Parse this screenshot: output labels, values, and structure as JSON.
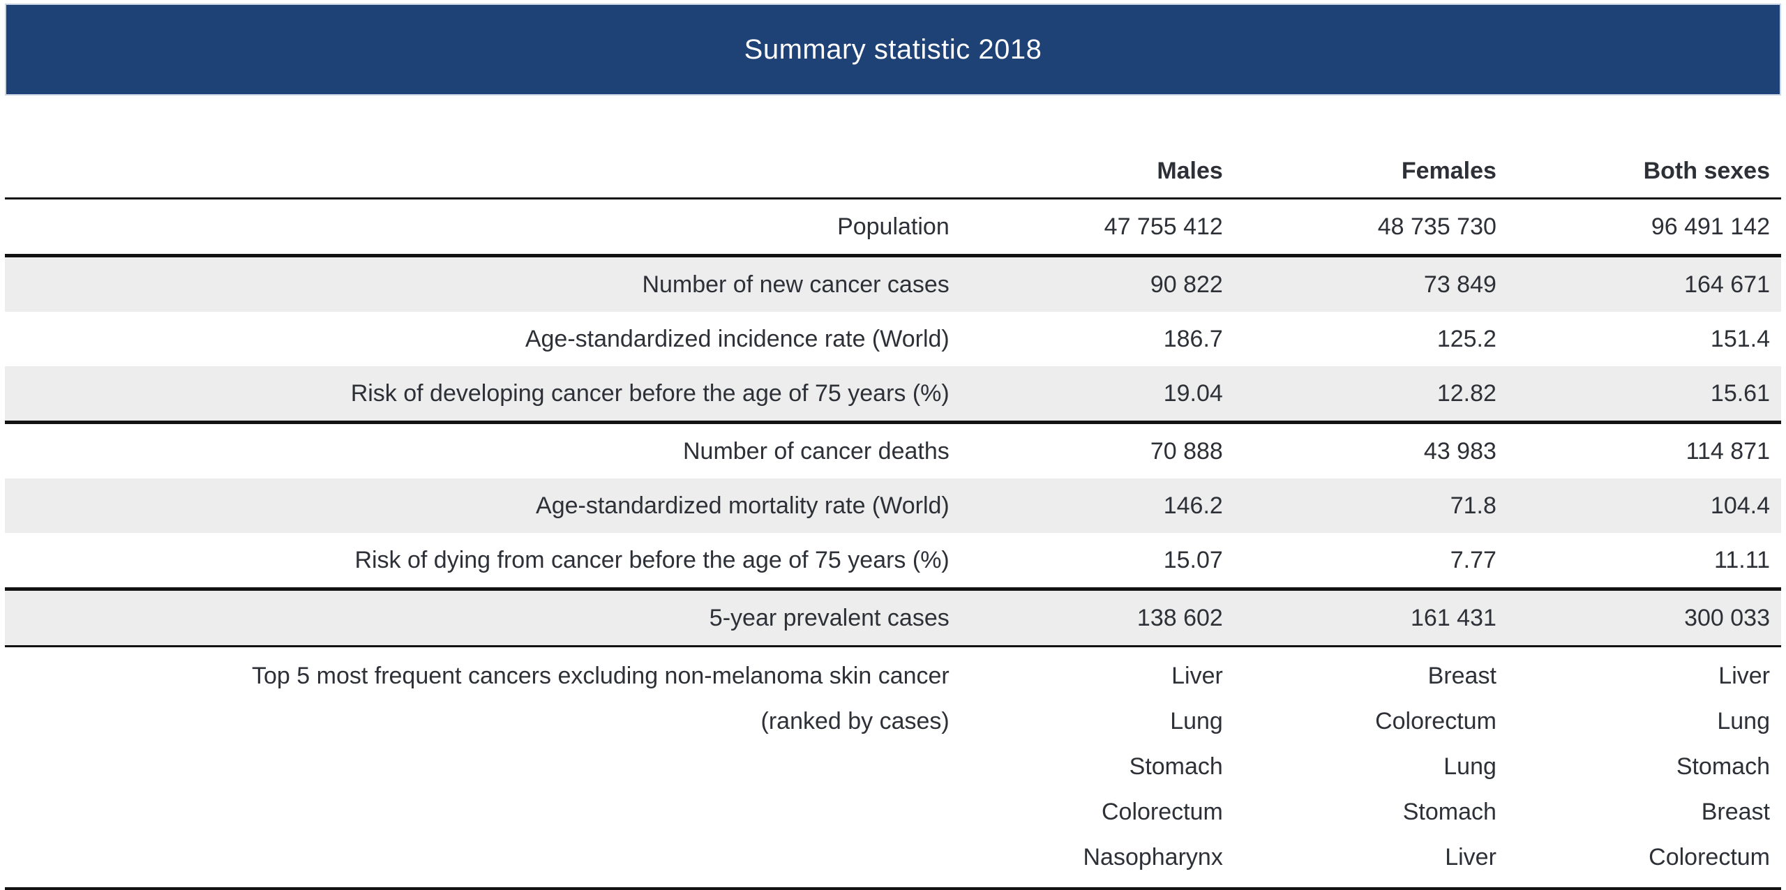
{
  "title": "Summary statistic 2018",
  "colors": {
    "title_bar_bg": "#1e4176",
    "title_bar_border": "#ccd5e3",
    "title_text": "#ffffff",
    "stripe_bg": "#ededed",
    "body_text": "#2d3036",
    "rule_line": "#121212"
  },
  "chart_data": {
    "type": "table",
    "title": "Summary statistic 2018",
    "columns": [
      "",
      "Males",
      "Females",
      "Both sexes"
    ],
    "rows": [
      {
        "label": "Population",
        "values": [
          "47 755 412",
          "48 735 730",
          "96 491 142"
        ]
      },
      {
        "label": "Number of new cancer cases",
        "values": [
          "90 822",
          "73 849",
          "164 671"
        ]
      },
      {
        "label": "Age-standardized incidence rate (World)",
        "values": [
          "186.7",
          "125.2",
          "151.4"
        ]
      },
      {
        "label": "Risk of developing cancer before the age of 75 years (%)",
        "values": [
          "19.04",
          "12.82",
          "15.61"
        ]
      },
      {
        "label": "Number of cancer deaths",
        "values": [
          "70 888",
          "43 983",
          "114 871"
        ]
      },
      {
        "label": "Age-standardized mortality rate (World)",
        "values": [
          "146.2",
          "71.8",
          "104.4"
        ]
      },
      {
        "label": "Risk of dying from cancer before the age of 75 years (%)",
        "values": [
          "15.07",
          "7.77",
          "11.11"
        ]
      },
      {
        "label": "5-year prevalent cases",
        "values": [
          "138 602",
          "161 431",
          "300 033"
        ]
      }
    ],
    "top5_row": {
      "label_lines": [
        "Top 5 most frequent cancers excluding non-melanoma skin cancer",
        "(ranked by cases)"
      ],
      "males": [
        "Liver",
        "Lung",
        "Stomach",
        "Colorectum",
        "Nasopharynx"
      ],
      "females": [
        "Breast",
        "Colorectum",
        "Lung",
        "Stomach",
        "Liver"
      ],
      "both_sexes": [
        "Liver",
        "Lung",
        "Stomach",
        "Breast",
        "Colorectum"
      ]
    }
  }
}
